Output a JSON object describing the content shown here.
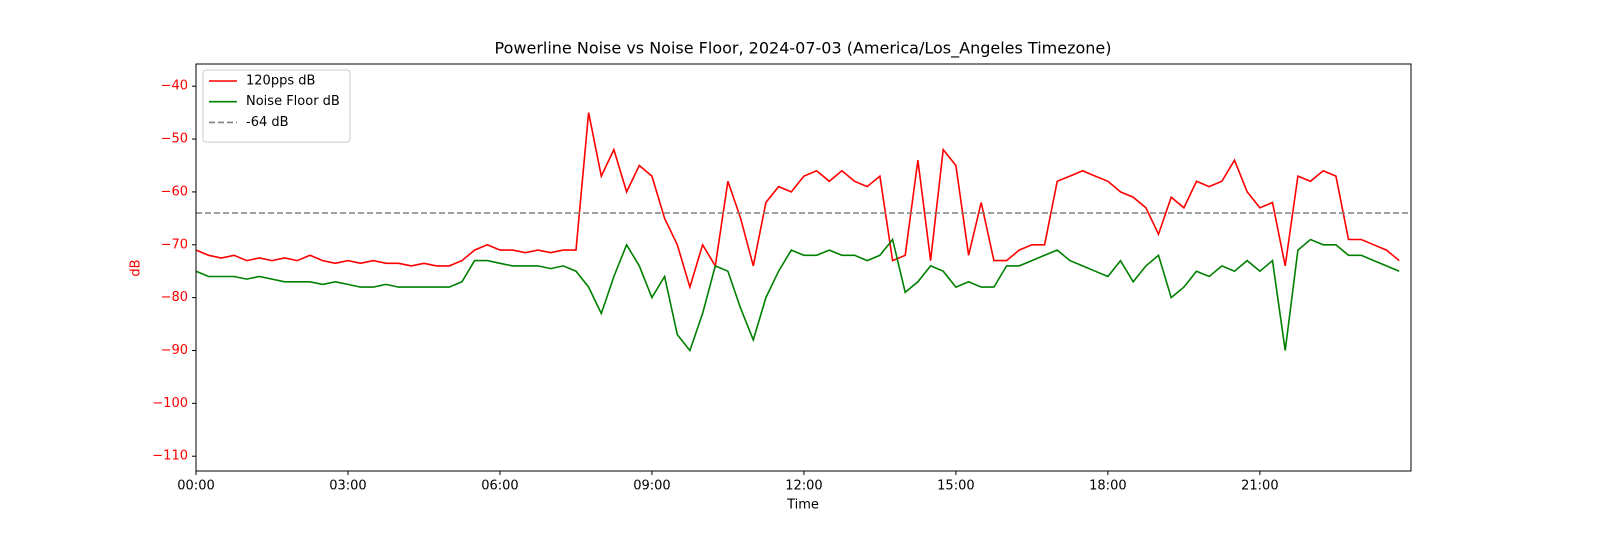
{
  "chart_data": {
    "type": "line",
    "title": "Powerline Noise vs Noise Floor, 2024-07-03 (America/Los_Angeles Timezone)",
    "xlabel": "Time",
    "ylabel": "dB",
    "ylabel_color": "#ff0000",
    "x": [
      "00:00",
      "00:15",
      "00:30",
      "00:45",
      "01:00",
      "01:15",
      "01:30",
      "01:45",
      "02:00",
      "02:15",
      "02:30",
      "02:45",
      "03:00",
      "03:15",
      "03:30",
      "03:45",
      "04:00",
      "04:15",
      "04:30",
      "04:45",
      "05:00",
      "05:15",
      "05:30",
      "05:45",
      "06:00",
      "06:15",
      "06:30",
      "06:45",
      "07:00",
      "07:15",
      "07:30",
      "07:45",
      "08:00",
      "08:15",
      "08:30",
      "08:45",
      "09:00",
      "09:15",
      "09:30",
      "09:45",
      "10:00",
      "10:15",
      "10:30",
      "10:45",
      "11:00",
      "11:15",
      "11:30",
      "11:45",
      "12:00",
      "12:15",
      "12:30",
      "12:45",
      "13:00",
      "13:15",
      "13:30",
      "13:45",
      "14:00",
      "14:15",
      "14:30",
      "14:45",
      "15:00",
      "15:15",
      "15:30",
      "15:45",
      "16:00",
      "16:15",
      "16:30",
      "16:45",
      "17:00",
      "17:15",
      "17:30",
      "17:45",
      "18:00",
      "18:15",
      "18:30",
      "18:45",
      "19:00",
      "19:15",
      "19:30",
      "19:45",
      "20:00",
      "20:15",
      "20:30",
      "20:45",
      "21:00",
      "21:15",
      "21:30",
      "21:45",
      "22:00",
      "22:15",
      "22:30",
      "22:45",
      "23:00",
      "23:15",
      "23:30",
      "23:45"
    ],
    "series": [
      {
        "name": "120pps dB",
        "color": "#ff0000",
        "values": [
          -71,
          -72,
          -72.5,
          -72,
          -73,
          -72.5,
          -73,
          -72.5,
          -73,
          -72,
          -73,
          -73.5,
          -73,
          -73.5,
          -73,
          -73.5,
          -73.5,
          -74,
          -73.5,
          -74,
          -74,
          -73,
          -71,
          -70,
          -71,
          -71,
          -71.5,
          -71,
          -71.5,
          -71,
          -71,
          -45,
          -57,
          -52,
          -60,
          -55,
          -57,
          -65,
          -70,
          -78,
          -70,
          -74,
          -58,
          -65,
          -74,
          -62,
          -59,
          -60,
          -57,
          -56,
          -58,
          -56,
          -58,
          -59,
          -57,
          -73,
          -72,
          -54,
          -73,
          -52,
          -55,
          -72,
          -62,
          -73,
          -73,
          -71,
          -70,
          -70,
          -58,
          -57,
          -56,
          -57,
          -58,
          -60,
          -61,
          -63,
          -68,
          -61,
          -63,
          -58,
          -59,
          -58,
          -54,
          -60,
          -63,
          -62,
          -74,
          -57,
          -58,
          -56,
          -57,
          -69,
          -69,
          -70,
          -71,
          -73
        ]
      },
      {
        "name": "Noise Floor dB",
        "color": "#008000",
        "values": [
          -75,
          -76,
          -76,
          -76,
          -76.5,
          -76,
          -76.5,
          -77,
          -77,
          -77,
          -77.5,
          -77,
          -77.5,
          -78,
          -78,
          -77.5,
          -78,
          -78,
          -78,
          -78,
          -78,
          -77,
          -73,
          -73,
          -73.5,
          -74,
          -74,
          -74,
          -74.5,
          -74,
          -75,
          -78,
          -83,
          -76,
          -70,
          -74,
          -80,
          -76,
          -87,
          -90,
          -83,
          -74,
          -75,
          -82,
          -88,
          -80,
          -75,
          -71,
          -72,
          -72,
          -71,
          -72,
          -72,
          -73,
          -72,
          -69,
          -79,
          -77,
          -74,
          -75,
          -78,
          -77,
          -78,
          -78,
          -74,
          -74,
          -73,
          -72,
          -71,
          -73,
          -74,
          -75,
          -76,
          -73,
          -77,
          -74,
          -72,
          -80,
          -78,
          -75,
          -76,
          -74,
          -75,
          -73,
          -75,
          -73,
          -90,
          -71,
          -69,
          -70,
          -70,
          -72,
          -72,
          -73,
          -74,
          -75
        ]
      }
    ],
    "hline": {
      "name": "-64 dB",
      "value": -64,
      "color": "#808080"
    },
    "xlim": [
      "00:00",
      "23:59"
    ],
    "xticks": [
      "00:00",
      "03:00",
      "06:00",
      "09:00",
      "12:00",
      "15:00",
      "18:00",
      "21:00"
    ],
    "ylim": [
      -112.8,
      -35.8
    ],
    "yticks": [
      {
        "value": -110,
        "label": "−110"
      },
      {
        "value": -100,
        "label": "−100"
      },
      {
        "value": -90,
        "label": "−90"
      },
      {
        "value": -80,
        "label": "−80"
      },
      {
        "value": -70,
        "label": "−70"
      },
      {
        "value": -60,
        "label": "−60"
      },
      {
        "value": -50,
        "label": "−50"
      },
      {
        "value": -40,
        "label": "−40"
      }
    ],
    "legend": "upper left"
  }
}
